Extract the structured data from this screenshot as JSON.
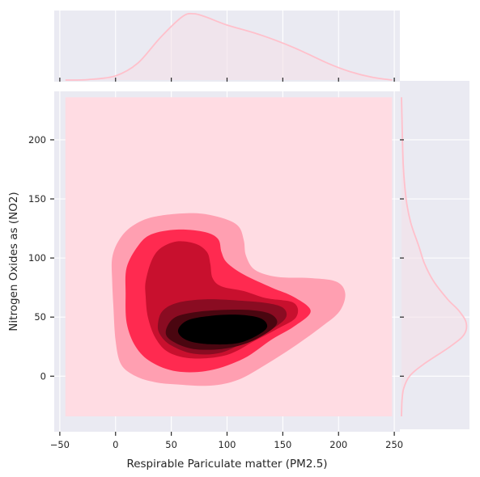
{
  "chart_data": {
    "type": "jointplot-kde",
    "title": "",
    "xlabel": "Respirable Pariculate matter (PM2.5)",
    "ylabel": "Nitrogen Oxides as (NO2)",
    "xlim": [
      -55,
      255
    ],
    "ylim": [
      -47,
      241
    ],
    "xticks": [
      -50,
      0,
      50,
      100,
      150,
      200,
      250
    ],
    "yticks": [
      0,
      50,
      100,
      150,
      200
    ],
    "fill_extent": {
      "x": [
        -45,
        248
      ],
      "y": [
        -34,
        236
      ]
    },
    "grid": true,
    "legend": "none",
    "colors": {
      "background": "#eaeaf2",
      "grid": "#ffffff",
      "marginal_line": "#ffc0cb",
      "marginal_fill": "#f3e0e8",
      "levels": [
        "#ffdce3",
        "#ff9fb1",
        "#ff2a50",
        "#c8102e",
        "#8a0c22",
        "#4a0610",
        "#000000"
      ]
    },
    "marginal_x": {
      "x": [
        -45,
        -25,
        0,
        20,
        40,
        60,
        70,
        80,
        100,
        130,
        160,
        190,
        210,
        230,
        248
      ],
      "density": [
        0.0,
        0.3,
        3.0,
        12.0,
        30.0,
        45.0,
        47.0,
        45.0,
        39.0,
        32.0,
        23.0,
        12.0,
        6.0,
        2.0,
        0.0
      ]
    },
    "marginal_y": {
      "y": [
        -34,
        -20,
        -10,
        0,
        10,
        25,
        35,
        45,
        55,
        65,
        80,
        95,
        110,
        130,
        150,
        180,
        236
      ],
      "density": [
        0.0,
        0.5,
        2.0,
        7.0,
        19.0,
        42.0,
        54.0,
        56.0,
        50.0,
        40.0,
        28.0,
        20.0,
        15.0,
        8.0,
        4.0,
        1.5,
        0.0
      ]
    },
    "kde_contours": {
      "levels": [
        [
          [
            -3,
            100
          ],
          [
            3,
            115
          ],
          [
            15,
            127
          ],
          [
            35,
            135
          ],
          [
            70,
            138
          ],
          [
            95,
            134
          ],
          [
            110,
            127
          ],
          [
            115,
            115
          ],
          [
            117,
            102
          ],
          [
            125,
            90
          ],
          [
            145,
            84
          ],
          [
            175,
            83
          ],
          [
            198,
            80
          ],
          [
            206,
            70
          ],
          [
            201,
            55
          ],
          [
            185,
            42
          ],
          [
            160,
            25
          ],
          [
            135,
            10
          ],
          [
            110,
            -3
          ],
          [
            85,
            -8
          ],
          [
            55,
            -7
          ],
          [
            35,
            -5
          ],
          [
            18,
            0
          ],
          [
            5,
            10
          ],
          [
            0,
            30
          ],
          [
            -2,
            60
          ],
          [
            -3,
            80
          ]
        ],
        [
          [
            10,
            92
          ],
          [
            20,
            110
          ],
          [
            32,
            120
          ],
          [
            55,
            124
          ],
          [
            80,
            122
          ],
          [
            92,
            116
          ],
          [
            95,
            105
          ],
          [
            100,
            96
          ],
          [
            115,
            86
          ],
          [
            140,
            75
          ],
          [
            160,
            67
          ],
          [
            175,
            55
          ],
          [
            160,
            42
          ],
          [
            140,
            31
          ],
          [
            115,
            15
          ],
          [
            85,
            5
          ],
          [
            55,
            4
          ],
          [
            32,
            12
          ],
          [
            18,
            25
          ],
          [
            10,
            45
          ],
          [
            9,
            70
          ]
        ],
        [
          [
            27,
            80
          ],
          [
            32,
            97
          ],
          [
            40,
            108
          ],
          [
            55,
            114
          ],
          [
            72,
            112
          ],
          [
            82,
            105
          ],
          [
            85,
            95
          ],
          [
            87,
            83
          ],
          [
            95,
            76
          ],
          [
            115,
            72
          ],
          [
            135,
            66
          ],
          [
            160,
            62
          ],
          [
            162,
            50
          ],
          [
            145,
            40
          ],
          [
            125,
            30
          ],
          [
            100,
            18
          ],
          [
            70,
            15
          ],
          [
            48,
            20
          ],
          [
            36,
            32
          ],
          [
            29,
            50
          ],
          [
            27,
            68
          ]
        ],
        [
          [
            38,
            44
          ],
          [
            42,
            55
          ],
          [
            55,
            62
          ],
          [
            80,
            65
          ],
          [
            110,
            64
          ],
          [
            135,
            62
          ],
          [
            150,
            58
          ],
          [
            153,
            50
          ],
          [
            142,
            41
          ],
          [
            120,
            31
          ],
          [
            95,
            20
          ],
          [
            70,
            19
          ],
          [
            50,
            26
          ],
          [
            40,
            35
          ]
        ],
        [
          [
            45,
            37
          ],
          [
            52,
            49
          ],
          [
            70,
            54
          ],
          [
            95,
            56
          ],
          [
            120,
            56
          ],
          [
            138,
            53
          ],
          [
            145,
            46
          ],
          [
            138,
            38
          ],
          [
            118,
            28
          ],
          [
            95,
            23
          ],
          [
            70,
            23
          ],
          [
            52,
            29
          ]
        ],
        [
          [
            56,
            38
          ],
          [
            64,
            47
          ],
          [
            85,
            51
          ],
          [
            110,
            52
          ],
          [
            130,
            49
          ],
          [
            136,
            42
          ],
          [
            128,
            35
          ],
          [
            110,
            28
          ],
          [
            85,
            27
          ],
          [
            65,
            30
          ]
        ],
        [
          [
            70,
            37
          ],
          [
            78,
            44
          ],
          [
            95,
            48
          ],
          [
            115,
            48
          ],
          [
            126,
            44
          ],
          [
            125,
            38
          ],
          [
            115,
            33
          ],
          [
            95,
            31
          ],
          [
            78,
            33
          ]
        ]
      ]
    }
  }
}
